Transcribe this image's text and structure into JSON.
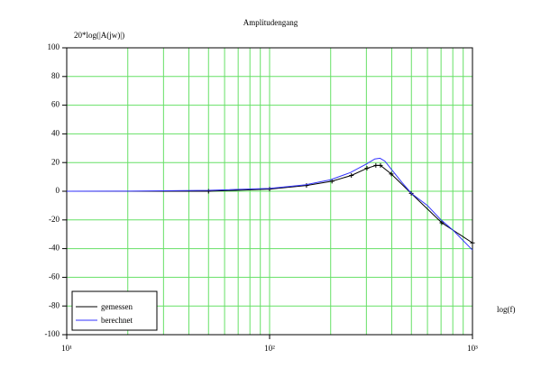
{
  "chart_data": {
    "type": "line",
    "title": "Amplitudengang",
    "ylabel": "20*log(|A(jw)|)",
    "xlabel": "log(f)",
    "xscale": "log",
    "xlim": [
      10,
      1000
    ],
    "xticks": [
      {
        "value": 10,
        "label": "10¹"
      },
      {
        "value": 100,
        "label": "10²"
      },
      {
        "value": 1000,
        "label": "10³"
      }
    ],
    "xminorticks": [
      20,
      30,
      40,
      50,
      60,
      70,
      80,
      90,
      200,
      300,
      400,
      500,
      600,
      700,
      800,
      900
    ],
    "ylim": [
      -100,
      100
    ],
    "yticks": [
      -100,
      -80,
      -60,
      -40,
      -20,
      0,
      20,
      40,
      60,
      80,
      100
    ],
    "grid": true,
    "grid_color": "#66e066",
    "legend": "lower left",
    "series": [
      {
        "name": "gemessen",
        "color": "#000000",
        "markers": true,
        "x": [
          10,
          50,
          100,
          152,
          203,
          253,
          302,
          334,
          352,
          398,
          499,
          706,
          1000
        ],
        "values": [
          0,
          0,
          1.5,
          4,
          7,
          11,
          16,
          18,
          18,
          12,
          -1.5,
          -22,
          -36
        ]
      },
      {
        "name": "berechnet",
        "color": "#3333ff",
        "markers": false,
        "x": [
          10,
          20,
          50,
          100,
          150,
          200,
          250,
          300,
          330,
          350,
          370,
          400,
          450,
          500,
          600,
          700,
          800,
          1000
        ],
        "values": [
          0,
          0.1,
          0.6,
          2,
          4.5,
          8,
          13,
          19,
          22.5,
          23,
          21,
          15,
          6,
          -1.5,
          -10,
          -20,
          -27,
          -41
        ]
      }
    ]
  }
}
